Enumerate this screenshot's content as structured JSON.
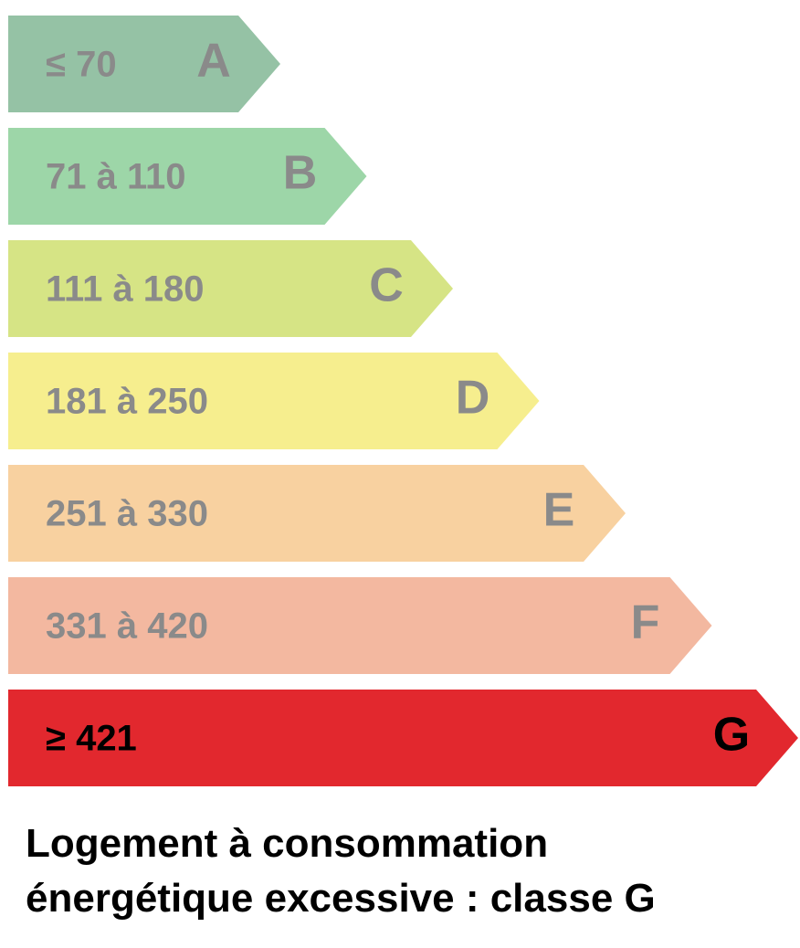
{
  "bands": [
    {
      "range": "≤ 70",
      "letter": "A",
      "color": "#95c2a5",
      "highlighted": false
    },
    {
      "range": "71 à 110",
      "letter": "B",
      "color": "#9dd6a8",
      "highlighted": false
    },
    {
      "range": "111 à 180",
      "letter": "C",
      "color": "#d6e485",
      "highlighted": false
    },
    {
      "range": "181 à 250",
      "letter": "D",
      "color": "#f6ee8e",
      "highlighted": false
    },
    {
      "range": "251 à 330",
      "letter": "E",
      "color": "#f8d1a0",
      "highlighted": false
    },
    {
      "range": "331 à 420",
      "letter": "F",
      "color": "#f3b8a0",
      "highlighted": false
    },
    {
      "range": "≥ 421",
      "letter": "G",
      "color": "#e2282e",
      "highlighted": true
    }
  ],
  "caption": [
    "Logement à consommation",
    "énergétique excessive : classe G"
  ]
}
